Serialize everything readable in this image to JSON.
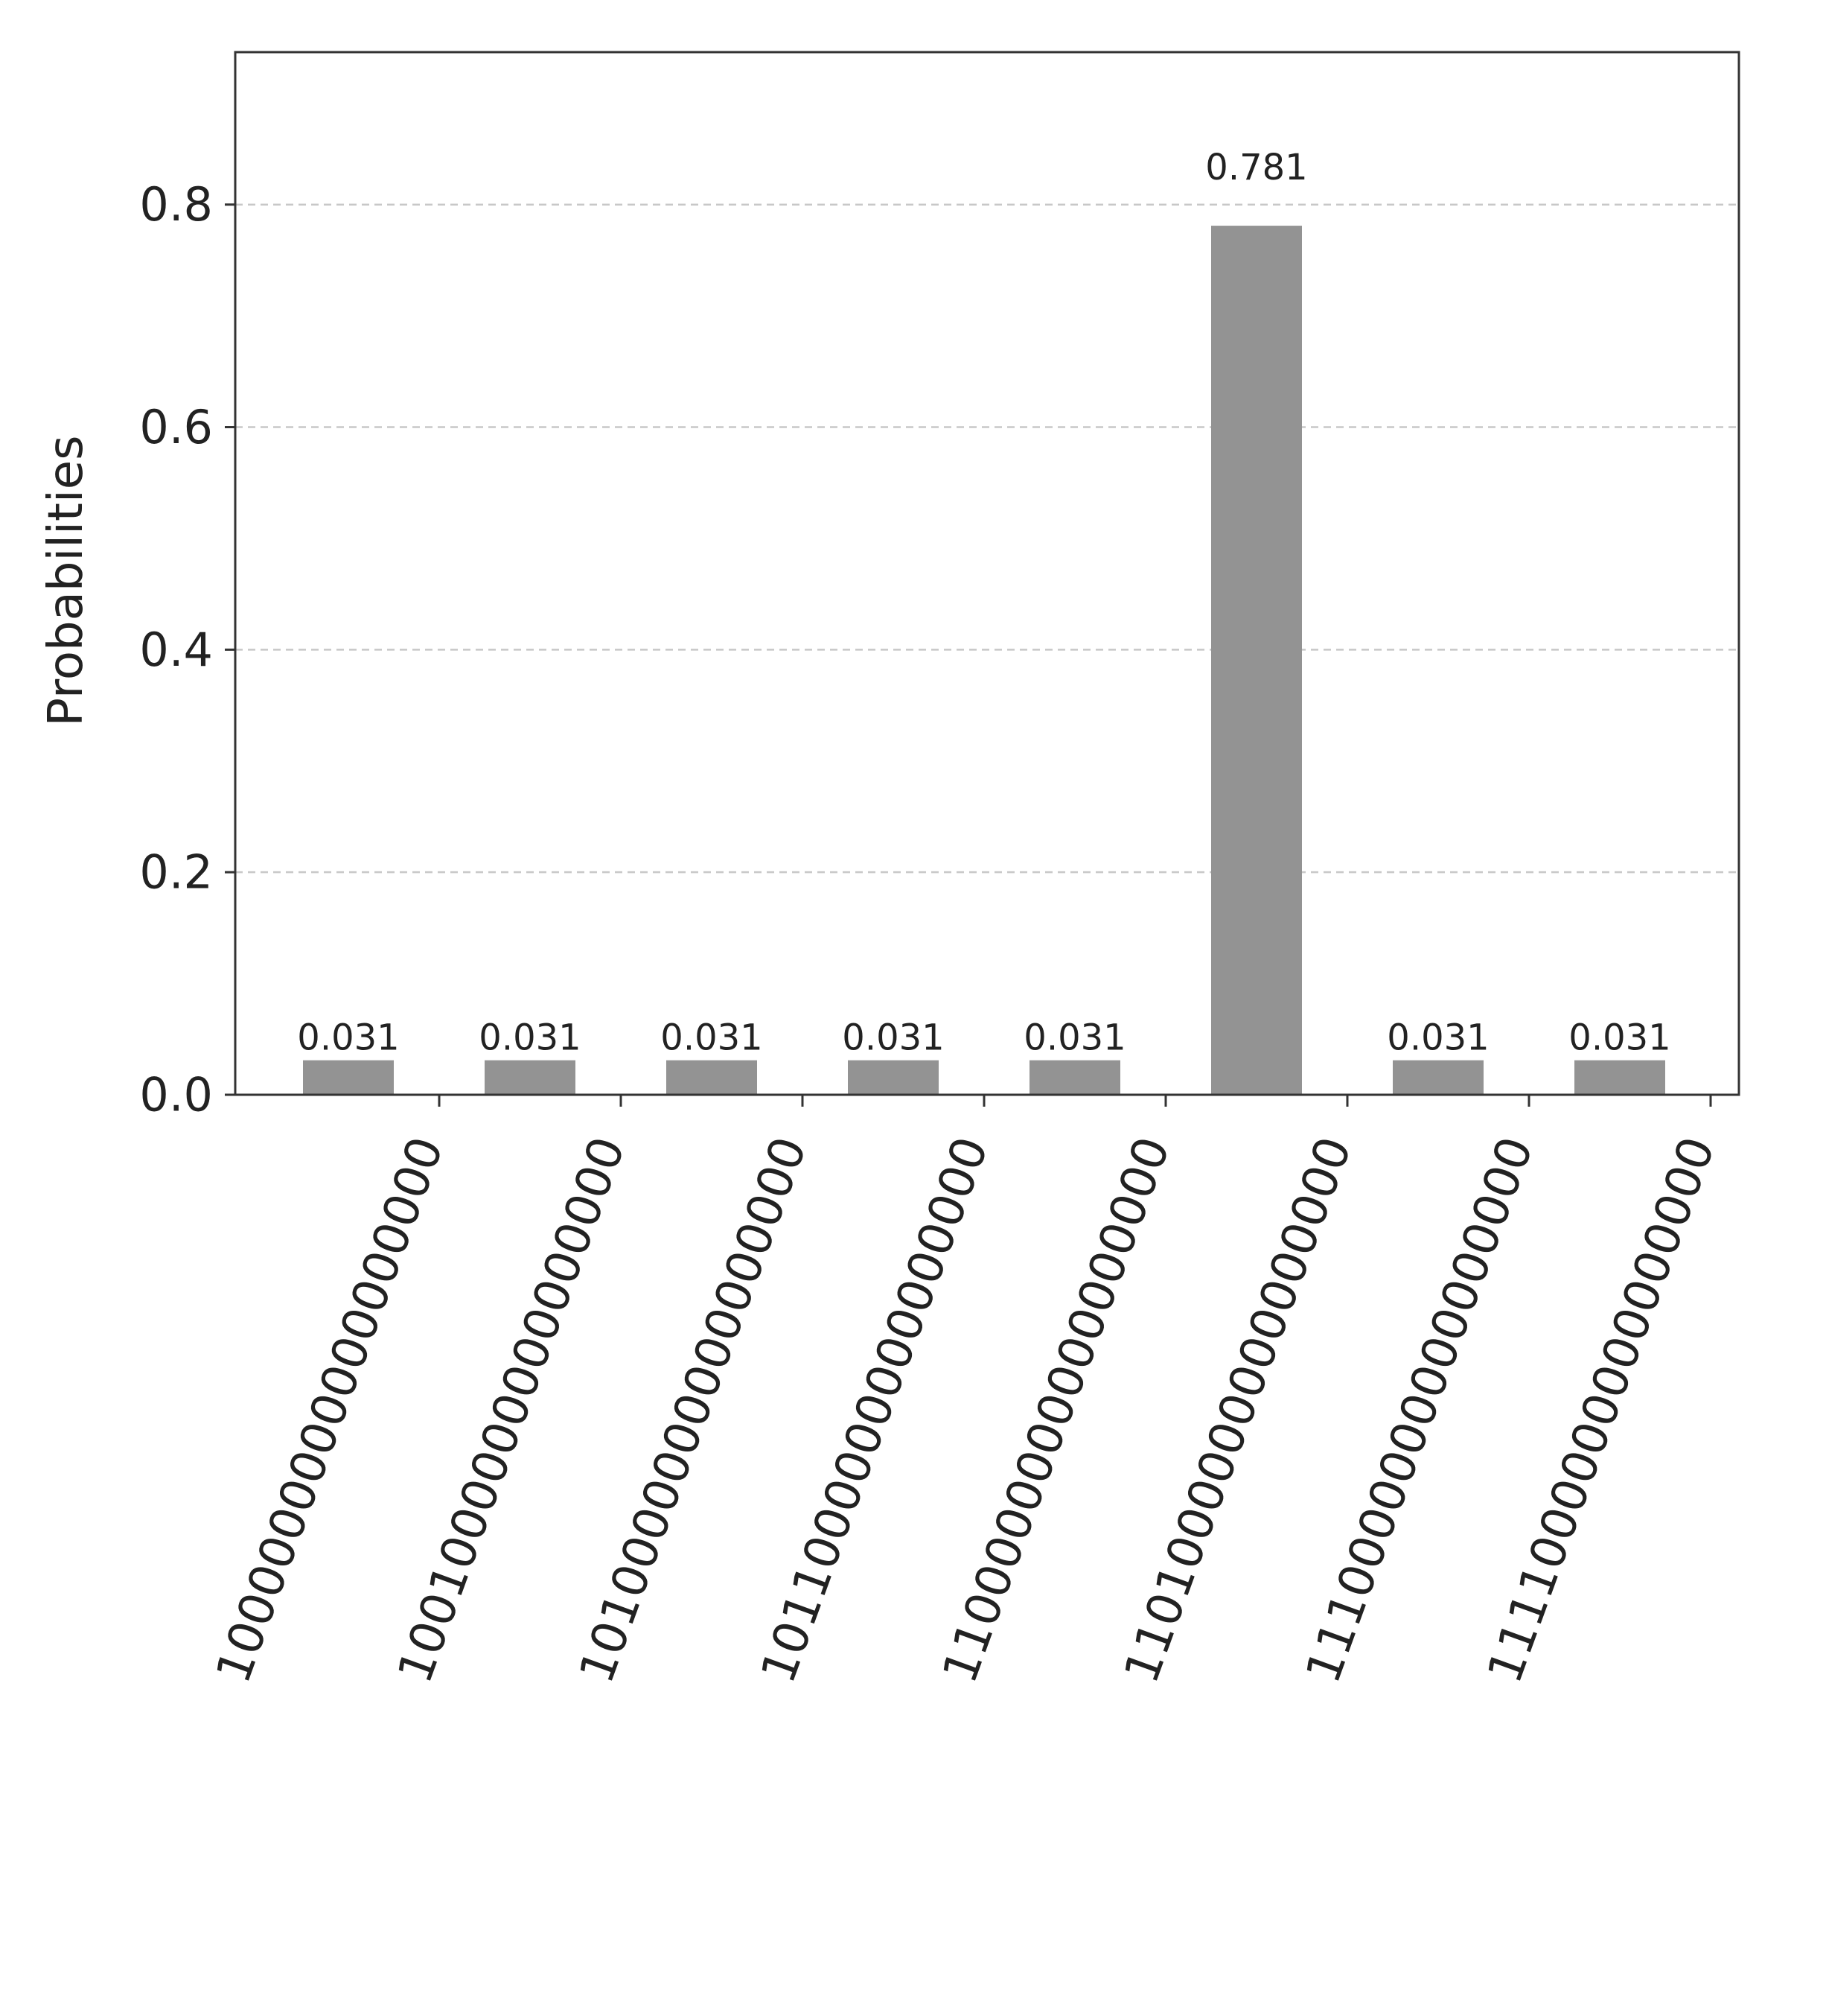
{
  "chart_data": {
    "type": "bar",
    "title": "",
    "xlabel": "",
    "ylabel": "Probabilities",
    "ylim": [
      0,
      0.937
    ],
    "yticks": [
      "0.0",
      "0.2",
      "0.4",
      "0.6",
      "0.8"
    ],
    "grid": "horizontal-dashed",
    "bar_color": "#939393",
    "categories": [
      "1000000000000000000",
      "1001000000000000000",
      "1010000000000000000",
      "1011000000000000000",
      "1100000000000000000",
      "1101000000000000000",
      "1110000000000000000",
      "1111000000000000000"
    ],
    "values": [
      0.031,
      0.031,
      0.031,
      0.031,
      0.031,
      0.781,
      0.031,
      0.031
    ],
    "value_labels": [
      "0.031",
      "0.031",
      "0.031",
      "0.031",
      "0.031",
      "0.781",
      "0.031",
      "0.031"
    ]
  }
}
